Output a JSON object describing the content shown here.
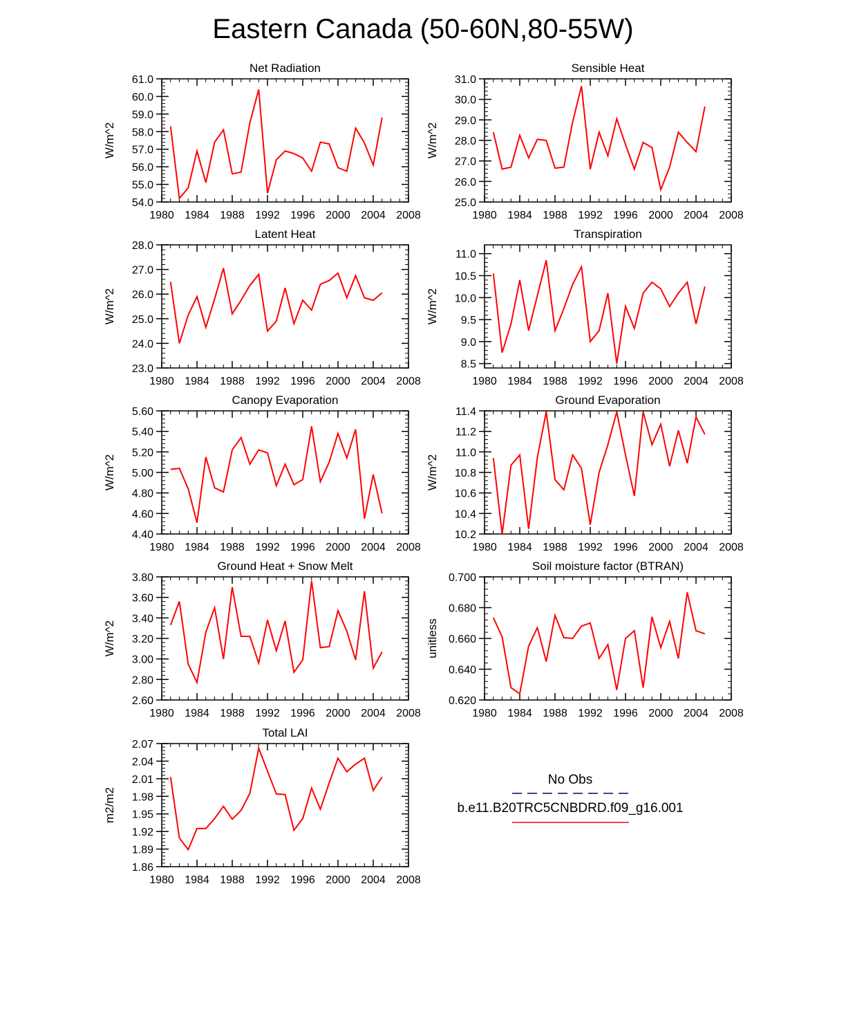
{
  "title": "Eastern Canada (50-60N,80-55W)",
  "legend": {
    "obs_label": "No Obs",
    "obs_color": "#000080",
    "model_label": "b.e11.B20TRC5CNBDRD.f09_g16.001",
    "model_color": "#ff0000"
  },
  "chart_data": [
    {
      "type": "line",
      "title": "Net Radiation",
      "ylabel": "W/m^2",
      "xlim": [
        1980,
        2008
      ],
      "xticks": [
        1980,
        1984,
        1988,
        1992,
        1996,
        2000,
        2004,
        2008
      ],
      "ylim": [
        54.0,
        61.0
      ],
      "yticks": [
        "54.0",
        "55.0",
        "56.0",
        "57.0",
        "58.0",
        "59.0",
        "60.0",
        "61.0"
      ],
      "x": [
        1981,
        1982,
        1983,
        1984,
        1985,
        1986,
        1987,
        1988,
        1989,
        1990,
        1991,
        1992,
        1993,
        1994,
        1995,
        1996,
        1997,
        1998,
        1999,
        2000,
        2001,
        2002,
        2003,
        2004,
        2005
      ],
      "series": [
        {
          "name": "b.e11.B20TRC5CNBDRD.f09_g16.001",
          "color": "#ff0000",
          "values": [
            58.3,
            54.2,
            54.8,
            56.9,
            55.1,
            57.4,
            58.1,
            55.6,
            55.7,
            58.5,
            60.4,
            54.5,
            56.4,
            56.9,
            56.75,
            56.5,
            55.75,
            57.4,
            57.3,
            55.95,
            55.75,
            58.2,
            57.35,
            56.1,
            58.8
          ]
        }
      ]
    },
    {
      "type": "line",
      "title": "Sensible Heat",
      "ylabel": "W/m^2",
      "xlim": [
        1980,
        2008
      ],
      "xticks": [
        1980,
        1984,
        1988,
        1992,
        1996,
        2000,
        2004,
        2008
      ],
      "ylim": [
        25.0,
        31.0
      ],
      "yticks": [
        "25.0",
        "26.0",
        "27.0",
        "28.0",
        "29.0",
        "30.0",
        "31.0"
      ],
      "x": [
        1981,
        1982,
        1983,
        1984,
        1985,
        1986,
        1987,
        1988,
        1989,
        1990,
        1991,
        1992,
        1993,
        1994,
        1995,
        1996,
        1997,
        1998,
        1999,
        2000,
        2001,
        2002,
        2003,
        2004,
        2005
      ],
      "series": [
        {
          "name": "b.e11.B20TRC5CNBDRD.f09_g16.001",
          "color": "#ff0000",
          "values": [
            28.4,
            26.6,
            26.7,
            28.25,
            27.15,
            28.05,
            28.0,
            26.65,
            26.7,
            28.9,
            30.65,
            26.6,
            28.4,
            27.25,
            29.05,
            27.8,
            26.6,
            27.9,
            27.65,
            25.6,
            26.7,
            28.4,
            27.9,
            27.45,
            29.65
          ]
        }
      ]
    },
    {
      "type": "line",
      "title": "Latent Heat",
      "ylabel": "W/m^2",
      "xlim": [
        1980,
        2008
      ],
      "xticks": [
        1980,
        1984,
        1988,
        1992,
        1996,
        2000,
        2004,
        2008
      ],
      "ylim": [
        23.0,
        28.0
      ],
      "yticks": [
        "23.0",
        "24.0",
        "25.0",
        "26.0",
        "27.0",
        "28.0"
      ],
      "x": [
        1981,
        1982,
        1983,
        1984,
        1985,
        1986,
        1987,
        1988,
        1989,
        1990,
        1991,
        1992,
        1993,
        1994,
        1995,
        1996,
        1997,
        1998,
        1999,
        2000,
        2001,
        2002,
        2003,
        2004,
        2005
      ],
      "series": [
        {
          "name": "b.e11.B20TRC5CNBDRD.f09_g16.001",
          "color": "#ff0000",
          "values": [
            26.5,
            24.0,
            25.15,
            25.9,
            24.65,
            25.8,
            27.05,
            25.2,
            25.75,
            26.35,
            26.8,
            24.5,
            24.9,
            26.25,
            24.8,
            25.75,
            25.35,
            26.4,
            26.55,
            26.85,
            25.85,
            26.75,
            25.85,
            25.75,
            26.05
          ]
        }
      ]
    },
    {
      "type": "line",
      "title": "Transpiration",
      "ylabel": "W/m^2",
      "xlim": [
        1980,
        2008
      ],
      "xticks": [
        1980,
        1984,
        1988,
        1992,
        1996,
        2000,
        2004,
        2008
      ],
      "ylim": [
        8.4,
        11.2
      ],
      "yticks": [
        "8.5",
        "9.0",
        "9.5",
        "10.0",
        "10.5",
        "11.0"
      ],
      "x": [
        1981,
        1982,
        1983,
        1984,
        1985,
        1986,
        1987,
        1988,
        1989,
        1990,
        1991,
        1992,
        1993,
        1994,
        1995,
        1996,
        1997,
        1998,
        1999,
        2000,
        2001,
        2002,
        2003,
        2004,
        2005
      ],
      "series": [
        {
          "name": "b.e11.B20TRC5CNBDRD.f09_g16.001",
          "color": "#ff0000",
          "values": [
            10.55,
            8.75,
            9.4,
            10.4,
            9.25,
            10.05,
            10.85,
            9.25,
            9.75,
            10.3,
            10.7,
            9.0,
            9.25,
            10.1,
            8.5,
            9.8,
            9.3,
            10.1,
            10.35,
            10.2,
            9.8,
            10.1,
            10.35,
            9.4,
            10.25
          ]
        }
      ]
    },
    {
      "type": "line",
      "title": "Canopy Evaporation",
      "ylabel": "W/m^2",
      "xlim": [
        1980,
        2008
      ],
      "xticks": [
        1980,
        1984,
        1988,
        1992,
        1996,
        2000,
        2004,
        2008
      ],
      "ylim": [
        4.4,
        5.6
      ],
      "yticks": [
        "4.40",
        "4.60",
        "4.80",
        "5.00",
        "5.20",
        "5.40",
        "5.60"
      ],
      "x": [
        1981,
        1982,
        1983,
        1984,
        1985,
        1986,
        1987,
        1988,
        1989,
        1990,
        1991,
        1992,
        1993,
        1994,
        1995,
        1996,
        1997,
        1998,
        1999,
        2000,
        2001,
        2002,
        2003,
        2004,
        2005
      ],
      "series": [
        {
          "name": "b.e11.B20TRC5CNBDRD.f09_g16.001",
          "color": "#ff0000",
          "values": [
            5.03,
            5.04,
            4.84,
            4.51,
            5.15,
            4.85,
            4.81,
            5.22,
            5.34,
            5.08,
            5.22,
            5.19,
            4.87,
            5.08,
            4.88,
            4.93,
            5.45,
            4.91,
            5.1,
            5.38,
            5.14,
            5.42,
            4.55,
            4.98,
            4.6
          ]
        }
      ]
    },
    {
      "type": "line",
      "title": "Ground Evaporation",
      "ylabel": "W/m^2",
      "xlim": [
        1980,
        2008
      ],
      "xticks": [
        1980,
        1984,
        1988,
        1992,
        1996,
        2000,
        2004,
        2008
      ],
      "ylim": [
        10.2,
        11.4
      ],
      "yticks": [
        "10.2",
        "10.4",
        "10.6",
        "10.8",
        "11.0",
        "11.2",
        "11.4"
      ],
      "x": [
        1981,
        1982,
        1983,
        1984,
        1985,
        1986,
        1987,
        1988,
        1989,
        1990,
        1991,
        1992,
        1993,
        1994,
        1995,
        1996,
        1997,
        1998,
        1999,
        2000,
        2001,
        2002,
        2003,
        2004,
        2005
      ],
      "series": [
        {
          "name": "b.e11.B20TRC5CNBDRD.f09_g16.001",
          "color": "#ff0000",
          "values": [
            10.94,
            10.2,
            10.87,
            10.97,
            10.25,
            10.95,
            11.39,
            10.73,
            10.63,
            10.97,
            10.84,
            10.29,
            10.8,
            11.07,
            11.39,
            10.97,
            10.57,
            11.39,
            11.07,
            11.27,
            10.86,
            11.21,
            10.89,
            11.34,
            11.17
          ]
        }
      ]
    },
    {
      "type": "line",
      "title": "Ground Heat + Snow Melt",
      "ylabel": "W/m^2",
      "xlim": [
        1980,
        2008
      ],
      "xticks": [
        1980,
        1984,
        1988,
        1992,
        1996,
        2000,
        2004,
        2008
      ],
      "ylim": [
        2.6,
        3.8
      ],
      "yticks": [
        "2.60",
        "2.80",
        "3.00",
        "3.20",
        "3.40",
        "3.60",
        "3.80"
      ],
      "x": [
        1981,
        1982,
        1983,
        1984,
        1985,
        1986,
        1987,
        1988,
        1989,
        1990,
        1991,
        1992,
        1993,
        1994,
        1995,
        1996,
        1997,
        1998,
        1999,
        2000,
        2001,
        2002,
        2003,
        2004,
        2005
      ],
      "series": [
        {
          "name": "b.e11.B20TRC5CNBDRD.f09_g16.001",
          "color": "#ff0000",
          "values": [
            3.33,
            3.56,
            2.95,
            2.77,
            3.26,
            3.5,
            3.0,
            3.7,
            3.22,
            3.22,
            2.96,
            3.38,
            3.08,
            3.37,
            2.87,
            2.99,
            3.76,
            3.11,
            3.12,
            3.47,
            3.27,
            2.99,
            3.66,
            2.91,
            3.07
          ]
        }
      ]
    },
    {
      "type": "line",
      "title": "Soil moisture factor (BTRAN)",
      "ylabel": "unitless",
      "xlim": [
        1980,
        2008
      ],
      "xticks": [
        1980,
        1984,
        1988,
        1992,
        1996,
        2000,
        2004,
        2008
      ],
      "ylim": [
        0.62,
        0.7
      ],
      "yticks": [
        "0.620",
        "0.640",
        "0.660",
        "0.680",
        "0.700"
      ],
      "x": [
        1981,
        1982,
        1983,
        1984,
        1985,
        1986,
        1987,
        1988,
        1989,
        1990,
        1991,
        1992,
        1993,
        1994,
        1995,
        1996,
        1997,
        1998,
        1999,
        2000,
        2001,
        2002,
        2003,
        2004,
        2005
      ],
      "series": [
        {
          "name": "b.e11.B20TRC5CNBDRD.f09_g16.001",
          "color": "#ff0000",
          "values": [
            0.6735,
            0.661,
            0.628,
            0.624,
            0.655,
            0.667,
            0.645,
            0.675,
            0.6605,
            0.66,
            0.668,
            0.67,
            0.647,
            0.656,
            0.6265,
            0.66,
            0.665,
            0.628,
            0.674,
            0.654,
            0.671,
            0.647,
            0.69,
            0.665,
            0.663
          ]
        }
      ]
    },
    {
      "type": "line",
      "title": "Total LAI",
      "ylabel": "m2/m2",
      "xlim": [
        1980,
        2008
      ],
      "xticks": [
        1980,
        1984,
        1988,
        1992,
        1996,
        2000,
        2004,
        2008
      ],
      "ylim": [
        1.86,
        2.07
      ],
      "yticks": [
        "1.86",
        "1.89",
        "1.92",
        "1.95",
        "1.98",
        "2.01",
        "2.04",
        "2.07"
      ],
      "x": [
        1981,
        1982,
        1983,
        1984,
        1985,
        1986,
        1987,
        1988,
        1989,
        1990,
        1991,
        1992,
        1993,
        1994,
        1995,
        1996,
        1997,
        1998,
        1999,
        2000,
        2001,
        2002,
        2003,
        2004,
        2005
      ],
      "series": [
        {
          "name": "b.e11.B20TRC5CNBDRD.f09_g16.001",
          "color": "#ff0000",
          "values": [
            2.013,
            1.909,
            1.889,
            1.925,
            1.925,
            1.942,
            1.963,
            1.941,
            1.956,
            1.985,
            2.062,
            2.023,
            1.984,
            1.983,
            1.922,
            1.942,
            1.994,
            1.958,
            2.003,
            2.045,
            2.022,
            2.035,
            2.045,
            1.99,
            2.013
          ]
        }
      ]
    }
  ]
}
